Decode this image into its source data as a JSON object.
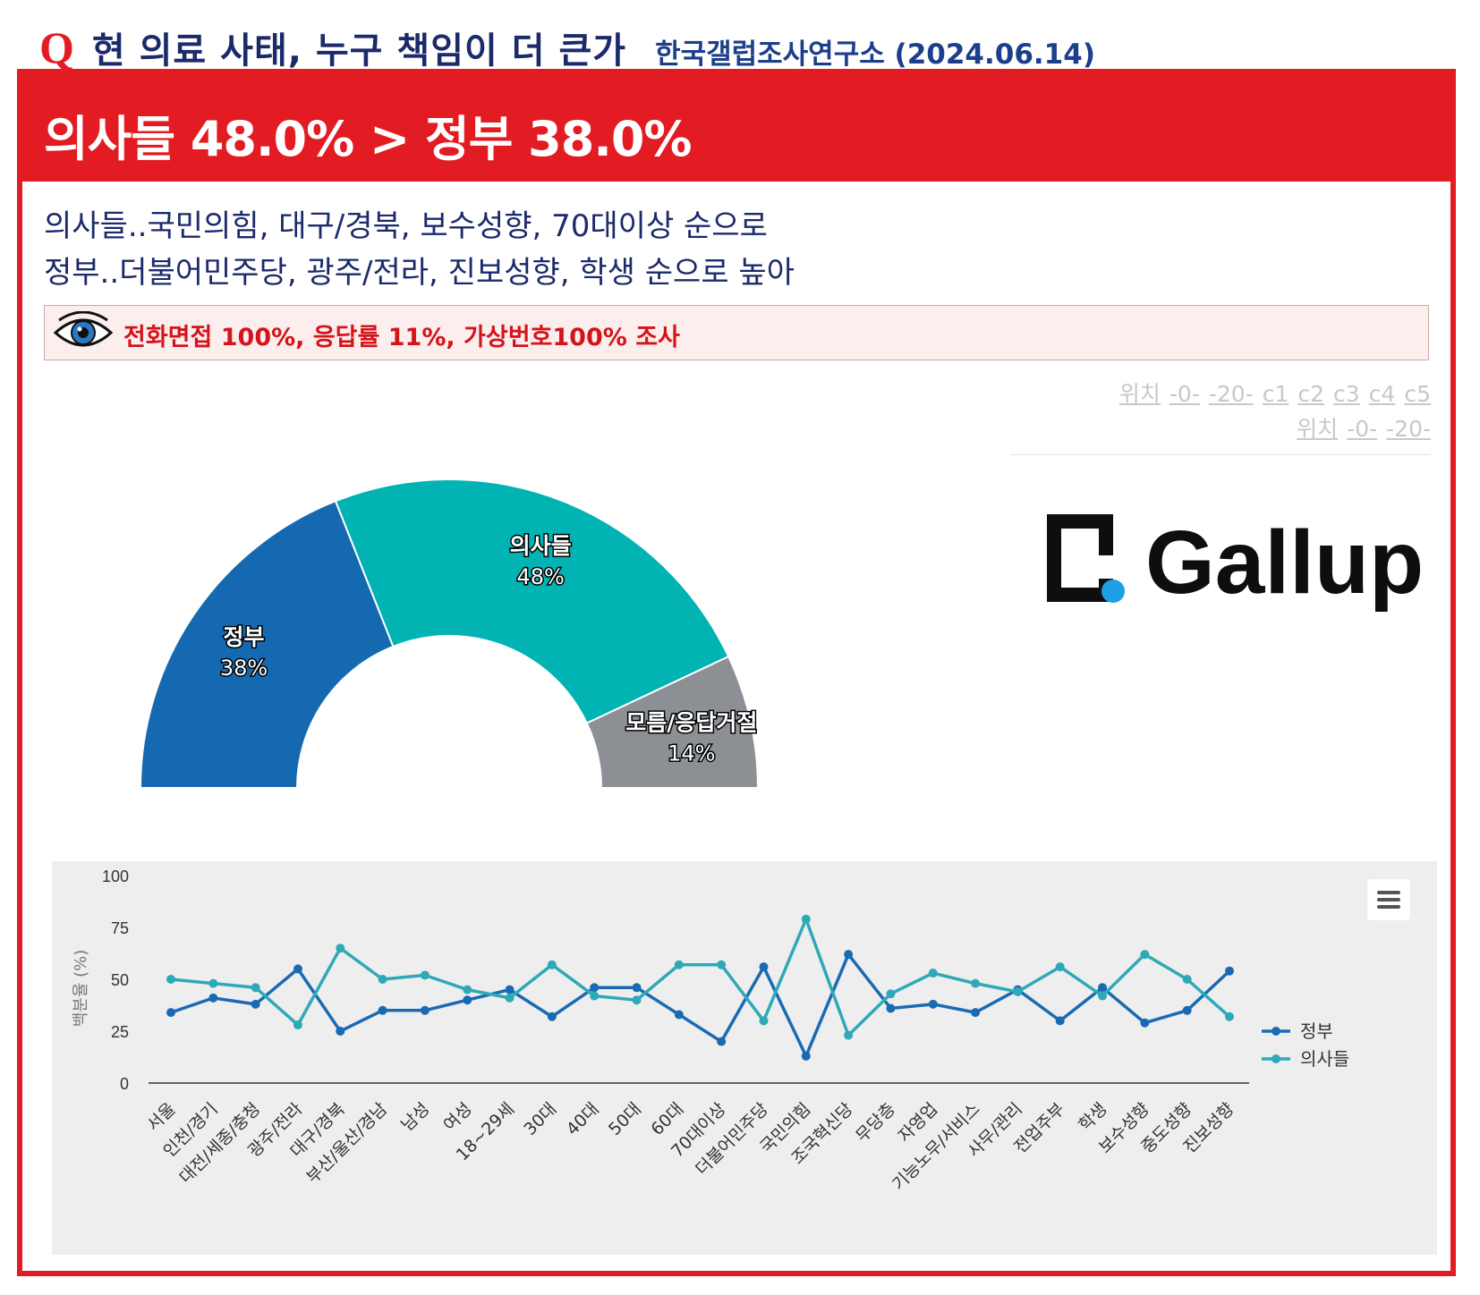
{
  "header": {
    "q_mark": "Q",
    "title": "현 의료 사태, 누구 책임이 더 큰가",
    "source": "한국갤럽조사연구소 (2024.06.14)"
  },
  "banner": {
    "headline": "의사들 48.0% > 정부 38.0%"
  },
  "summary": {
    "line1": "의사들..국민의힘, 대구/경북, 보수성향, 70대이상 순으로",
    "line2": "정부..더불어민주당, 광주/전라, 진보성향, 학생 순으로 높아"
  },
  "method": {
    "icon": "eye-icon",
    "text": "전화면접 100%, 응답률 11%, 가상번호100% 조사"
  },
  "links": {
    "row1": [
      "위치",
      "-0-",
      "-20-",
      "c1",
      "c2",
      "c3",
      "c4",
      "c5"
    ],
    "row2": [
      "위치",
      "-0-",
      "-20-"
    ]
  },
  "logo": {
    "text": "Gallup",
    "mark_color": "#0e0e0e",
    "dot_color": "#1ea0e6"
  },
  "colors": {
    "accent_red": "#e31b23",
    "navy": "#1b2a6b",
    "series_gov": "#1a6ab3",
    "series_doc": "#2ea9b8"
  },
  "chart_data": [
    {
      "type": "pie",
      "variant": "semi-donut",
      "slices": [
        {
          "label": "정부",
          "value": 38,
          "value_label": "38%",
          "color": "#1469b0"
        },
        {
          "label": "의사들",
          "value": 48,
          "value_label": "48%",
          "color": "#02b3b3"
        },
        {
          "label": "모름/응답거절",
          "value": 14,
          "value_label": "14%",
          "color": "#8c9095"
        }
      ]
    },
    {
      "type": "line",
      "ylabel": "백분율 (%)",
      "ylim": [
        0,
        100
      ],
      "yticks": [
        0,
        25,
        50,
        75,
        100
      ],
      "legend_position": "right",
      "categories": [
        "서울",
        "인천/경기",
        "대전/세종/충청",
        "광주/전라",
        "대구/경북",
        "부산/울산/경남",
        "남성",
        "여성",
        "18~29세",
        "30대",
        "40대",
        "50대",
        "60대",
        "70대이상",
        "더불어민주당",
        "국민의힘",
        "조국혁신당",
        "무당층",
        "자영업",
        "기능노무/서비스",
        "사무/관리",
        "전업주부",
        "학생",
        "보수성향",
        "중도성향",
        "진보성향"
      ],
      "series": [
        {
          "name": "정부",
          "color": "#1a6ab3",
          "values": [
            34,
            41,
            38,
            55,
            25,
            35,
            35,
            40,
            45,
            32,
            46,
            46,
            33,
            20,
            56,
            13,
            62,
            36,
            38,
            34,
            45,
            30,
            46,
            29,
            35,
            54
          ]
        },
        {
          "name": "의사들",
          "color": "#2ea9b8",
          "values": [
            50,
            48,
            46,
            28,
            65,
            50,
            52,
            45,
            41,
            57,
            42,
            40,
            57,
            57,
            30,
            79,
            23,
            43,
            53,
            48,
            44,
            56,
            42,
            62,
            50,
            32
          ]
        }
      ]
    }
  ]
}
